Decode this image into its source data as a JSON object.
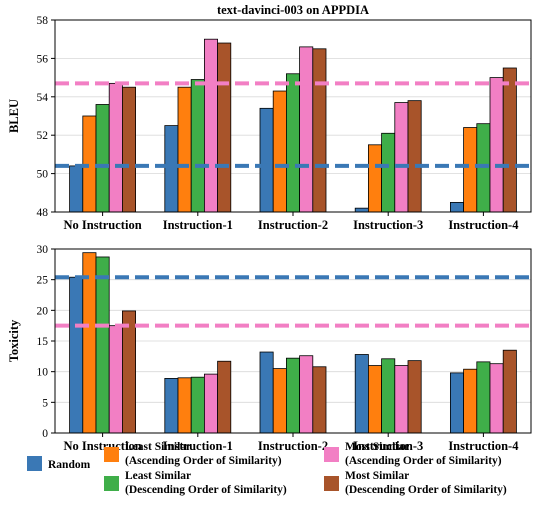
{
  "chart_data": [
    {
      "type": "bar",
      "title": "text-davinci-003  on  APPDIA",
      "xlabel": "",
      "ylabel": "BLEU",
      "ylim": [
        48,
        58
      ],
      "yticks": [
        48,
        50,
        52,
        54,
        56,
        58
      ],
      "grid": true,
      "categories": [
        "No Instruction",
        "Instruction-1",
        "Instruction-2",
        "Instruction-3",
        "Instruction-4"
      ],
      "series": [
        {
          "name": "Random",
          "color": "#3a78b5",
          "values": [
            50.4,
            52.5,
            53.4,
            48.2,
            48.5
          ]
        },
        {
          "name": "Least Similar (Ascending Order of Similarity)",
          "color": "#ff7f0e",
          "values": [
            53.0,
            54.5,
            54.3,
            51.5,
            52.4
          ]
        },
        {
          "name": "Least Similar (Descending Order of Similarity)",
          "color": "#3fae49",
          "values": [
            53.6,
            54.9,
            55.2,
            52.1,
            52.6
          ]
        },
        {
          "name": "Most Similar (Ascending Order of Similarity)",
          "color": "#f27fc4",
          "values": [
            54.7,
            57.0,
            56.6,
            53.7,
            55.0
          ]
        },
        {
          "name": "Most Similar (Descending Order of Similarity)",
          "color": "#a8542a",
          "values": [
            54.5,
            56.8,
            56.5,
            53.8,
            55.5
          ]
        }
      ],
      "reference_lines": [
        {
          "value": 54.7,
          "color": "#f27fc4",
          "style": "dashed"
        },
        {
          "value": 50.4,
          "color": "#3a78b5",
          "style": "dashed"
        }
      ]
    },
    {
      "type": "bar",
      "title": "",
      "xlabel": "",
      "ylabel": "Toxicity",
      "ylim": [
        0,
        30
      ],
      "yticks": [
        0,
        5,
        10,
        15,
        20,
        25,
        30
      ],
      "grid": true,
      "categories": [
        "No Instruction",
        "Instruction-1",
        "Instruction-2",
        "Instruction-3",
        "Instruction-4"
      ],
      "series": [
        {
          "name": "Random",
          "color": "#3a78b5",
          "values": [
            25.4,
            8.9,
            13.2,
            12.8,
            9.8
          ]
        },
        {
          "name": "Least Similar (Ascending Order of Similarity)",
          "color": "#ff7f0e",
          "values": [
            29.4,
            9.0,
            10.5,
            11.0,
            10.4
          ]
        },
        {
          "name": "Least Similar (Descending Order of Similarity)",
          "color": "#3fae49",
          "values": [
            28.7,
            9.1,
            12.2,
            12.1,
            11.6
          ]
        },
        {
          "name": "Most Similar (Ascending Order of Similarity)",
          "color": "#f27fc4",
          "values": [
            17.5,
            9.6,
            12.6,
            11.0,
            11.3
          ]
        },
        {
          "name": "Most Similar (Descending Order of Similarity)",
          "color": "#a8542a",
          "values": [
            19.9,
            11.7,
            10.8,
            11.8,
            13.5
          ]
        }
      ],
      "reference_lines": [
        {
          "value": 25.4,
          "color": "#3a78b5",
          "style": "dashed"
        },
        {
          "value": 17.5,
          "color": "#f27fc4",
          "style": "dashed"
        }
      ]
    }
  ],
  "legend": {
    "placement": "bottom",
    "entries": [
      {
        "color": "#3a78b5",
        "line1": "Random",
        "line2": ""
      },
      {
        "color": "#ff7f0e",
        "line1": "Least Similar",
        "line2": "(Ascending Order of Similarity)"
      },
      {
        "color": "#3fae49",
        "line1": "Least Similar",
        "line2": "(Descending Order of Similarity)"
      },
      {
        "color": "#f27fc4",
        "line1": "Most Similar",
        "line2": "(Ascending Order of Similarity)"
      },
      {
        "color": "#a8542a",
        "line1": "Most Similar",
        "line2": "(Descending Order of Similarity)"
      }
    ]
  }
}
